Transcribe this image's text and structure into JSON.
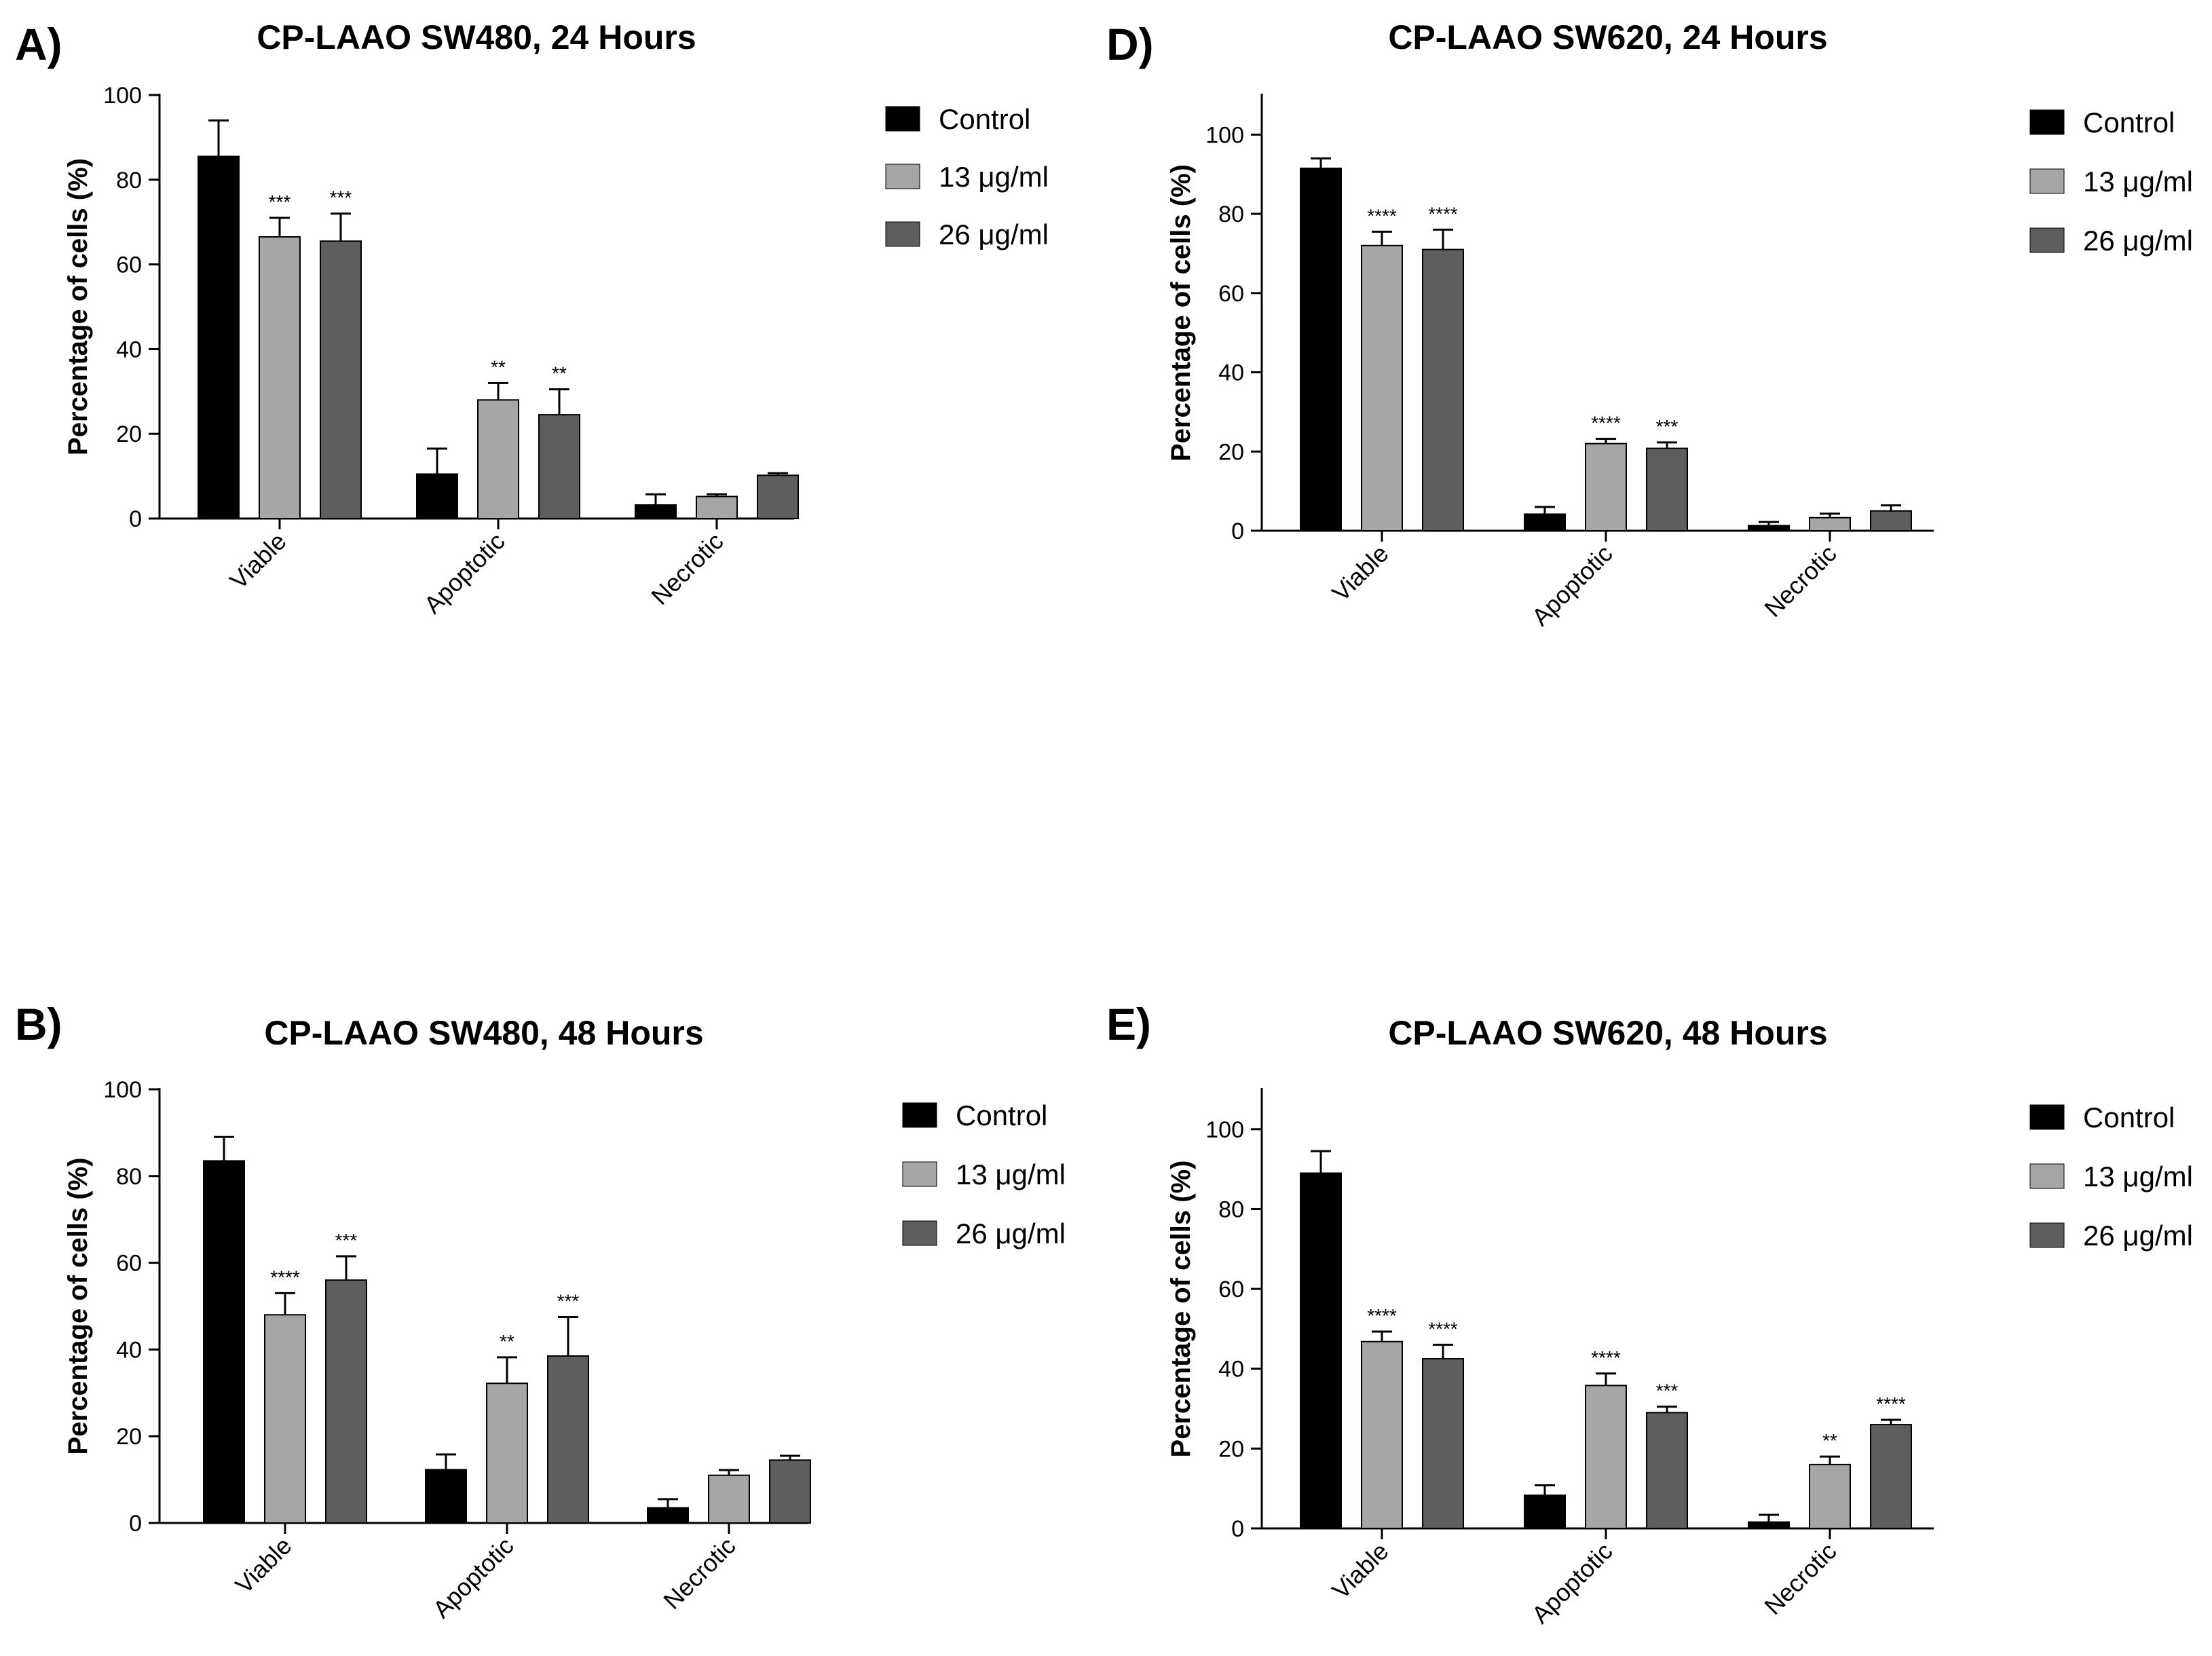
{
  "chart_data": [
    {
      "type": "bar",
      "label": "A)",
      "title": "CP-LAAO  SW480, 24 Hours",
      "ylabel": "Percentage of cells (%)",
      "xlabel": "",
      "ylim": [
        0,
        100
      ],
      "yticks": [
        0,
        20,
        40,
        60,
        80,
        100
      ],
      "categories": [
        "Viable",
        "Apoptotic",
        "Necrotic"
      ],
      "legend_position": "right",
      "series": [
        {
          "name": "Control",
          "color": "#000000",
          "values": [
            85.5,
            10.5,
            3.2
          ],
          "errors": [
            8.5,
            6.0,
            2.5
          ],
          "sig": [
            "",
            "",
            ""
          ]
        },
        {
          "name": "13 μg/ml",
          "color": "#a6a6a8",
          "values": [
            66.5,
            28.0,
            5.2
          ],
          "errors": [
            4.5,
            4.0,
            0.5
          ],
          "sig": [
            "***",
            "**",
            ""
          ]
        },
        {
          "name": "26 μg/ml",
          "color": "#5e5e60",
          "values": [
            65.5,
            24.5,
            10.2
          ],
          "errors": [
            6.5,
            6.0,
            0.5
          ],
          "sig": [
            "***",
            "**",
            ""
          ]
        }
      ]
    },
    {
      "type": "bar",
      "label": "D)",
      "title": "CP-LAAO  SW620, 24 Hours",
      "ylabel": "Percentage of cells (%)",
      "xlabel": "",
      "ylim": [
        0,
        110
      ],
      "yticks": [
        0,
        20,
        40,
        60,
        80,
        100
      ],
      "categories": [
        "Viable",
        "Apoptotic",
        "Necrotic"
      ],
      "legend_position": "right",
      "series": [
        {
          "name": "Control",
          "color": "#000000",
          "values": [
            91.5,
            4.2,
            1.3
          ],
          "errors": [
            2.5,
            1.8,
            0.9
          ],
          "sig": [
            "",
            "",
            ""
          ]
        },
        {
          "name": "13 μg/ml",
          "color": "#a6a6a8",
          "values": [
            72.0,
            22.0,
            3.3
          ],
          "errors": [
            3.5,
            1.2,
            1.0
          ],
          "sig": [
            "****",
            "****",
            ""
          ]
        },
        {
          "name": "26 μg/ml",
          "color": "#5e5e60",
          "values": [
            71.0,
            20.8,
            5.0
          ],
          "errors": [
            5.0,
            1.5,
            1.4
          ],
          "sig": [
            "****",
            "***",
            ""
          ]
        }
      ]
    },
    {
      "type": "bar",
      "label": "B)",
      "title": "CP-LAAO  SW480, 48 Hours",
      "ylabel": "Percentage of cells (%)",
      "xlabel": "",
      "ylim": [
        0,
        100
      ],
      "yticks": [
        0,
        20,
        40,
        60,
        80,
        100
      ],
      "categories": [
        "Viable",
        "Apoptotic",
        "Necrotic"
      ],
      "legend_position": "right",
      "series": [
        {
          "name": "Control",
          "color": "#000000",
          "values": [
            83.5,
            12.3,
            3.5
          ],
          "errors": [
            5.5,
            3.5,
            2.0
          ],
          "sig": [
            "",
            "",
            ""
          ]
        },
        {
          "name": "13 μg/ml",
          "color": "#a6a6a8",
          "values": [
            48.0,
            32.2,
            11.0
          ],
          "errors": [
            5.0,
            6.0,
            1.2
          ],
          "sig": [
            "****",
            "**",
            ""
          ]
        },
        {
          "name": "26 μg/ml",
          "color": "#5e5e60",
          "values": [
            56.0,
            38.5,
            14.5
          ],
          "errors": [
            5.5,
            9.0,
            1.0
          ],
          "sig": [
            "***",
            "***",
            ""
          ]
        }
      ]
    },
    {
      "type": "bar",
      "label": "E)",
      "title": "CP-LAAO  SW620, 48 Hours",
      "ylabel": "Percentage of cells (%)",
      "xlabel": "",
      "ylim": [
        0,
        110
      ],
      "yticks": [
        0,
        20,
        40,
        60,
        80,
        100
      ],
      "categories": [
        "Viable",
        "Apoptotic",
        "Necrotic"
      ],
      "legend_position": "right",
      "series": [
        {
          "name": "Control",
          "color": "#000000",
          "values": [
            89.0,
            8.3,
            1.6
          ],
          "errors": [
            5.5,
            2.5,
            1.8
          ],
          "sig": [
            "",
            "",
            ""
          ]
        },
        {
          "name": "13 μg/ml",
          "color": "#a6a6a8",
          "values": [
            46.8,
            35.8,
            16.0
          ],
          "errors": [
            2.5,
            3.0,
            2.0
          ],
          "sig": [
            "****",
            "****",
            "**"
          ]
        },
        {
          "name": "26 μg/ml",
          "color": "#5e5e60",
          "values": [
            42.5,
            29.0,
            26.0
          ],
          "errors": [
            3.5,
            1.5,
            1.2
          ],
          "sig": [
            "****",
            "***",
            "****"
          ]
        }
      ]
    }
  ]
}
